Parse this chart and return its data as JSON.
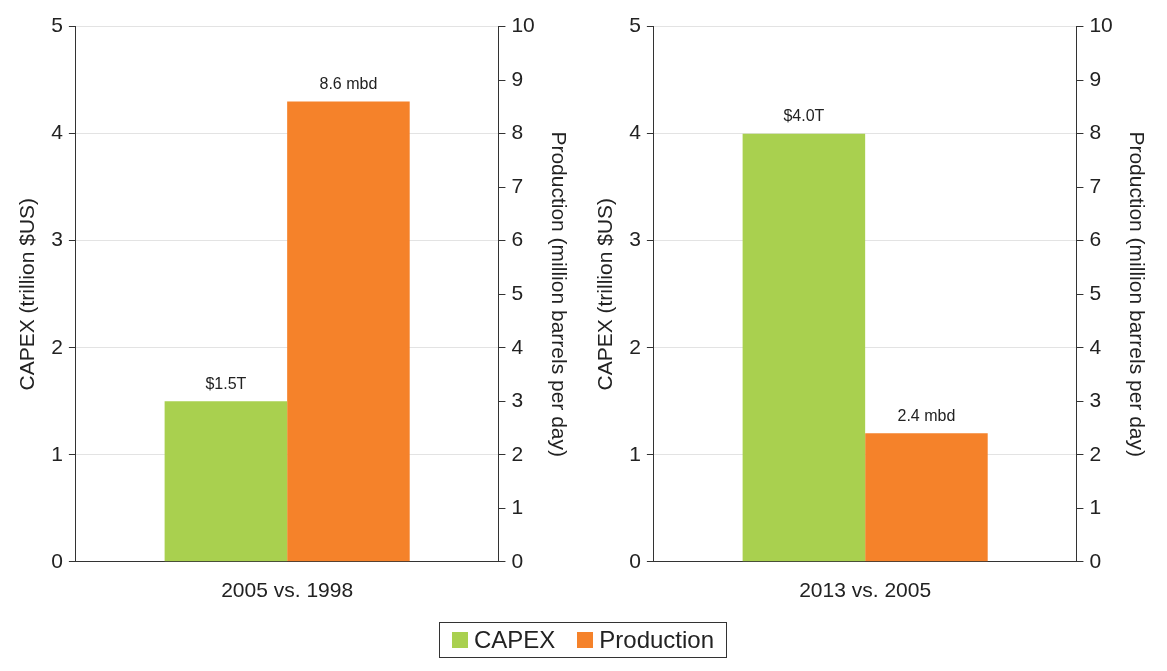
{
  "chart_data": [
    {
      "type": "bar",
      "categories": [
        "2005 vs. 1998"
      ],
      "ylabel": "CAPEX (trillion $US)",
      "y2label": "Production (million barrels per day)",
      "ylim": [
        0,
        5
      ],
      "yticks": [
        0,
        1,
        2,
        3,
        4,
        5
      ],
      "y2lim": [
        0,
        10
      ],
      "y2ticks": [
        0,
        1,
        2,
        3,
        4,
        5,
        6,
        7,
        8,
        9,
        10
      ],
      "grid": "y",
      "legend": "bottom",
      "series": [
        {
          "name": "CAPEX",
          "color": "#a9d04f",
          "values": [
            1.5
          ],
          "value_labels": [
            "$1.5T"
          ]
        },
        {
          "name": "Production",
          "color": "#f5822a",
          "values": [
            8.6
          ],
          "axis": "y2",
          "value_labels": [
            "8.6 mbd"
          ]
        }
      ]
    },
    {
      "type": "bar",
      "categories": [
        "2013 vs. 2005"
      ],
      "ylabel": "CAPEX (trillion $US)",
      "y2label": "Production (million barrels per day)",
      "ylim": [
        0,
        5
      ],
      "yticks": [
        0,
        1,
        2,
        3,
        4,
        5
      ],
      "y2lim": [
        0,
        10
      ],
      "y2ticks": [
        0,
        1,
        2,
        3,
        4,
        5,
        6,
        7,
        8,
        9,
        10
      ],
      "grid": "y",
      "series": [
        {
          "color": "#a9d04f",
          "values": [
            4.0
          ],
          "value_labels": [
            "$4.0T"
          ]
        },
        {
          "color": "#f5822a",
          "values": [
            2.4
          ],
          "axis": "y2",
          "value_labels": [
            "2.4 mbd"
          ]
        }
      ]
    }
  ]
}
